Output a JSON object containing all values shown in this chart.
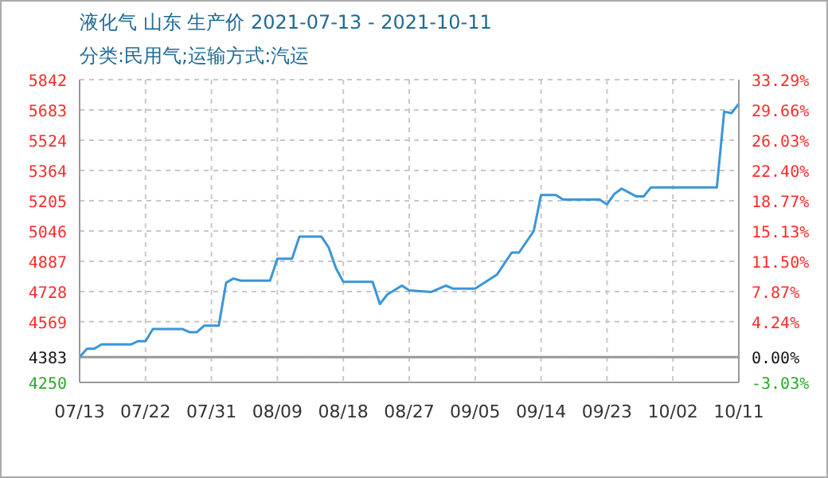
{
  "chart_data": {
    "type": "line",
    "title": "液化气 山东 生产价 2021-07-13 - 2021-10-11",
    "subtitle": "分类:民用气;运输方式:汽运",
    "x": [
      "2021-07-13",
      "2021-07-14",
      "2021-07-15",
      "2021-07-16",
      "2021-07-20",
      "2021-07-21",
      "2021-07-22",
      "2021-07-23",
      "2021-07-27",
      "2021-07-28",
      "2021-07-29",
      "2021-07-30",
      "2021-08-01",
      "2021-08-02",
      "2021-08-03",
      "2021-08-04",
      "2021-08-08",
      "2021-08-09",
      "2021-08-11",
      "2021-08-12",
      "2021-08-15",
      "2021-08-16",
      "2021-08-17",
      "2021-08-18",
      "2021-08-22",
      "2021-08-23",
      "2021-08-24",
      "2021-08-26",
      "2021-08-27",
      "2021-08-30",
      "2021-09-01",
      "2021-09-02",
      "2021-09-05",
      "2021-09-07",
      "2021-09-08",
      "2021-09-10",
      "2021-09-11",
      "2021-09-13",
      "2021-09-14",
      "2021-09-16",
      "2021-09-17",
      "2021-09-22",
      "2021-09-23",
      "2021-09-24",
      "2021-09-25",
      "2021-09-27",
      "2021-09-28",
      "2021-09-29",
      "2021-10-08",
      "2021-10-09",
      "2021-10-10",
      "2021-10-11"
    ],
    "series": [
      {
        "color": "#3a96d8",
        "values": [
          4383,
          4427,
          4427,
          4450,
          4450,
          4467,
          4467,
          4531,
          4531,
          4514,
          4514,
          4548,
          4548,
          4774,
          4796,
          4785,
          4785,
          4900,
          4900,
          5017,
          5017,
          4960,
          4850,
          4779,
          4779,
          4662,
          4712,
          4759,
          4734,
          4726,
          4759,
          4743,
          4743,
          4793,
          4818,
          4933,
          4933,
          5046,
          5236,
          5236,
          5211,
          5211,
          5186,
          5241,
          5269,
          5228,
          5228,
          5275,
          5275,
          5674,
          5666,
          5716
        ]
      }
    ],
    "xlim": [
      "2021-07-13",
      "2021-10-11"
    ],
    "xticks": [
      {
        "value": "2021-07-13",
        "label": "07/13"
      },
      {
        "value": "2021-07-22",
        "label": "07/22"
      },
      {
        "value": "2021-07-31",
        "label": "07/31"
      },
      {
        "value": "2021-08-09",
        "label": "08/09"
      },
      {
        "value": "2021-08-18",
        "label": "08/18"
      },
      {
        "value": "2021-08-27",
        "label": "08/27"
      },
      {
        "value": "2021-09-05",
        "label": "09/05"
      },
      {
        "value": "2021-09-14",
        "label": "09/14"
      },
      {
        "value": "2021-09-23",
        "label": "09/23"
      },
      {
        "value": "2021-10-02",
        "label": "10/02"
      },
      {
        "value": "2021-10-11",
        "label": "10/11"
      }
    ],
    "ylim": [
      4250,
      5842
    ],
    "yticks": [
      4250,
      4383,
      4569,
      4728,
      4887,
      5046,
      5205,
      5364,
      5524,
      5683,
      5842
    ],
    "y2lim": [
      -3.03,
      33.29
    ],
    "y2ticks": [
      {
        "value": -3.03,
        "label": "-3.03%"
      },
      {
        "value": 0,
        "label": "0.00%"
      },
      {
        "value": 4.24,
        "label": "4.24%"
      },
      {
        "value": 7.87,
        "label": "7.87%"
      },
      {
        "value": 11.5,
        "label": "11.50%"
      },
      {
        "value": 15.13,
        "label": "15.13%"
      },
      {
        "value": 18.77,
        "label": "18.77%"
      },
      {
        "value": 22.4,
        "label": "22.40%"
      },
      {
        "value": 26.03,
        "label": "26.03%"
      },
      {
        "value": 29.66,
        "label": "29.66%"
      },
      {
        "value": 33.29,
        "label": "33.29%"
      }
    ],
    "ref_lines": [
      {
        "axis": "y2",
        "value": 0,
        "color": "#999999",
        "line_style": "solid"
      }
    ],
    "grid": true,
    "marker": "none",
    "line_style": "solid"
  }
}
